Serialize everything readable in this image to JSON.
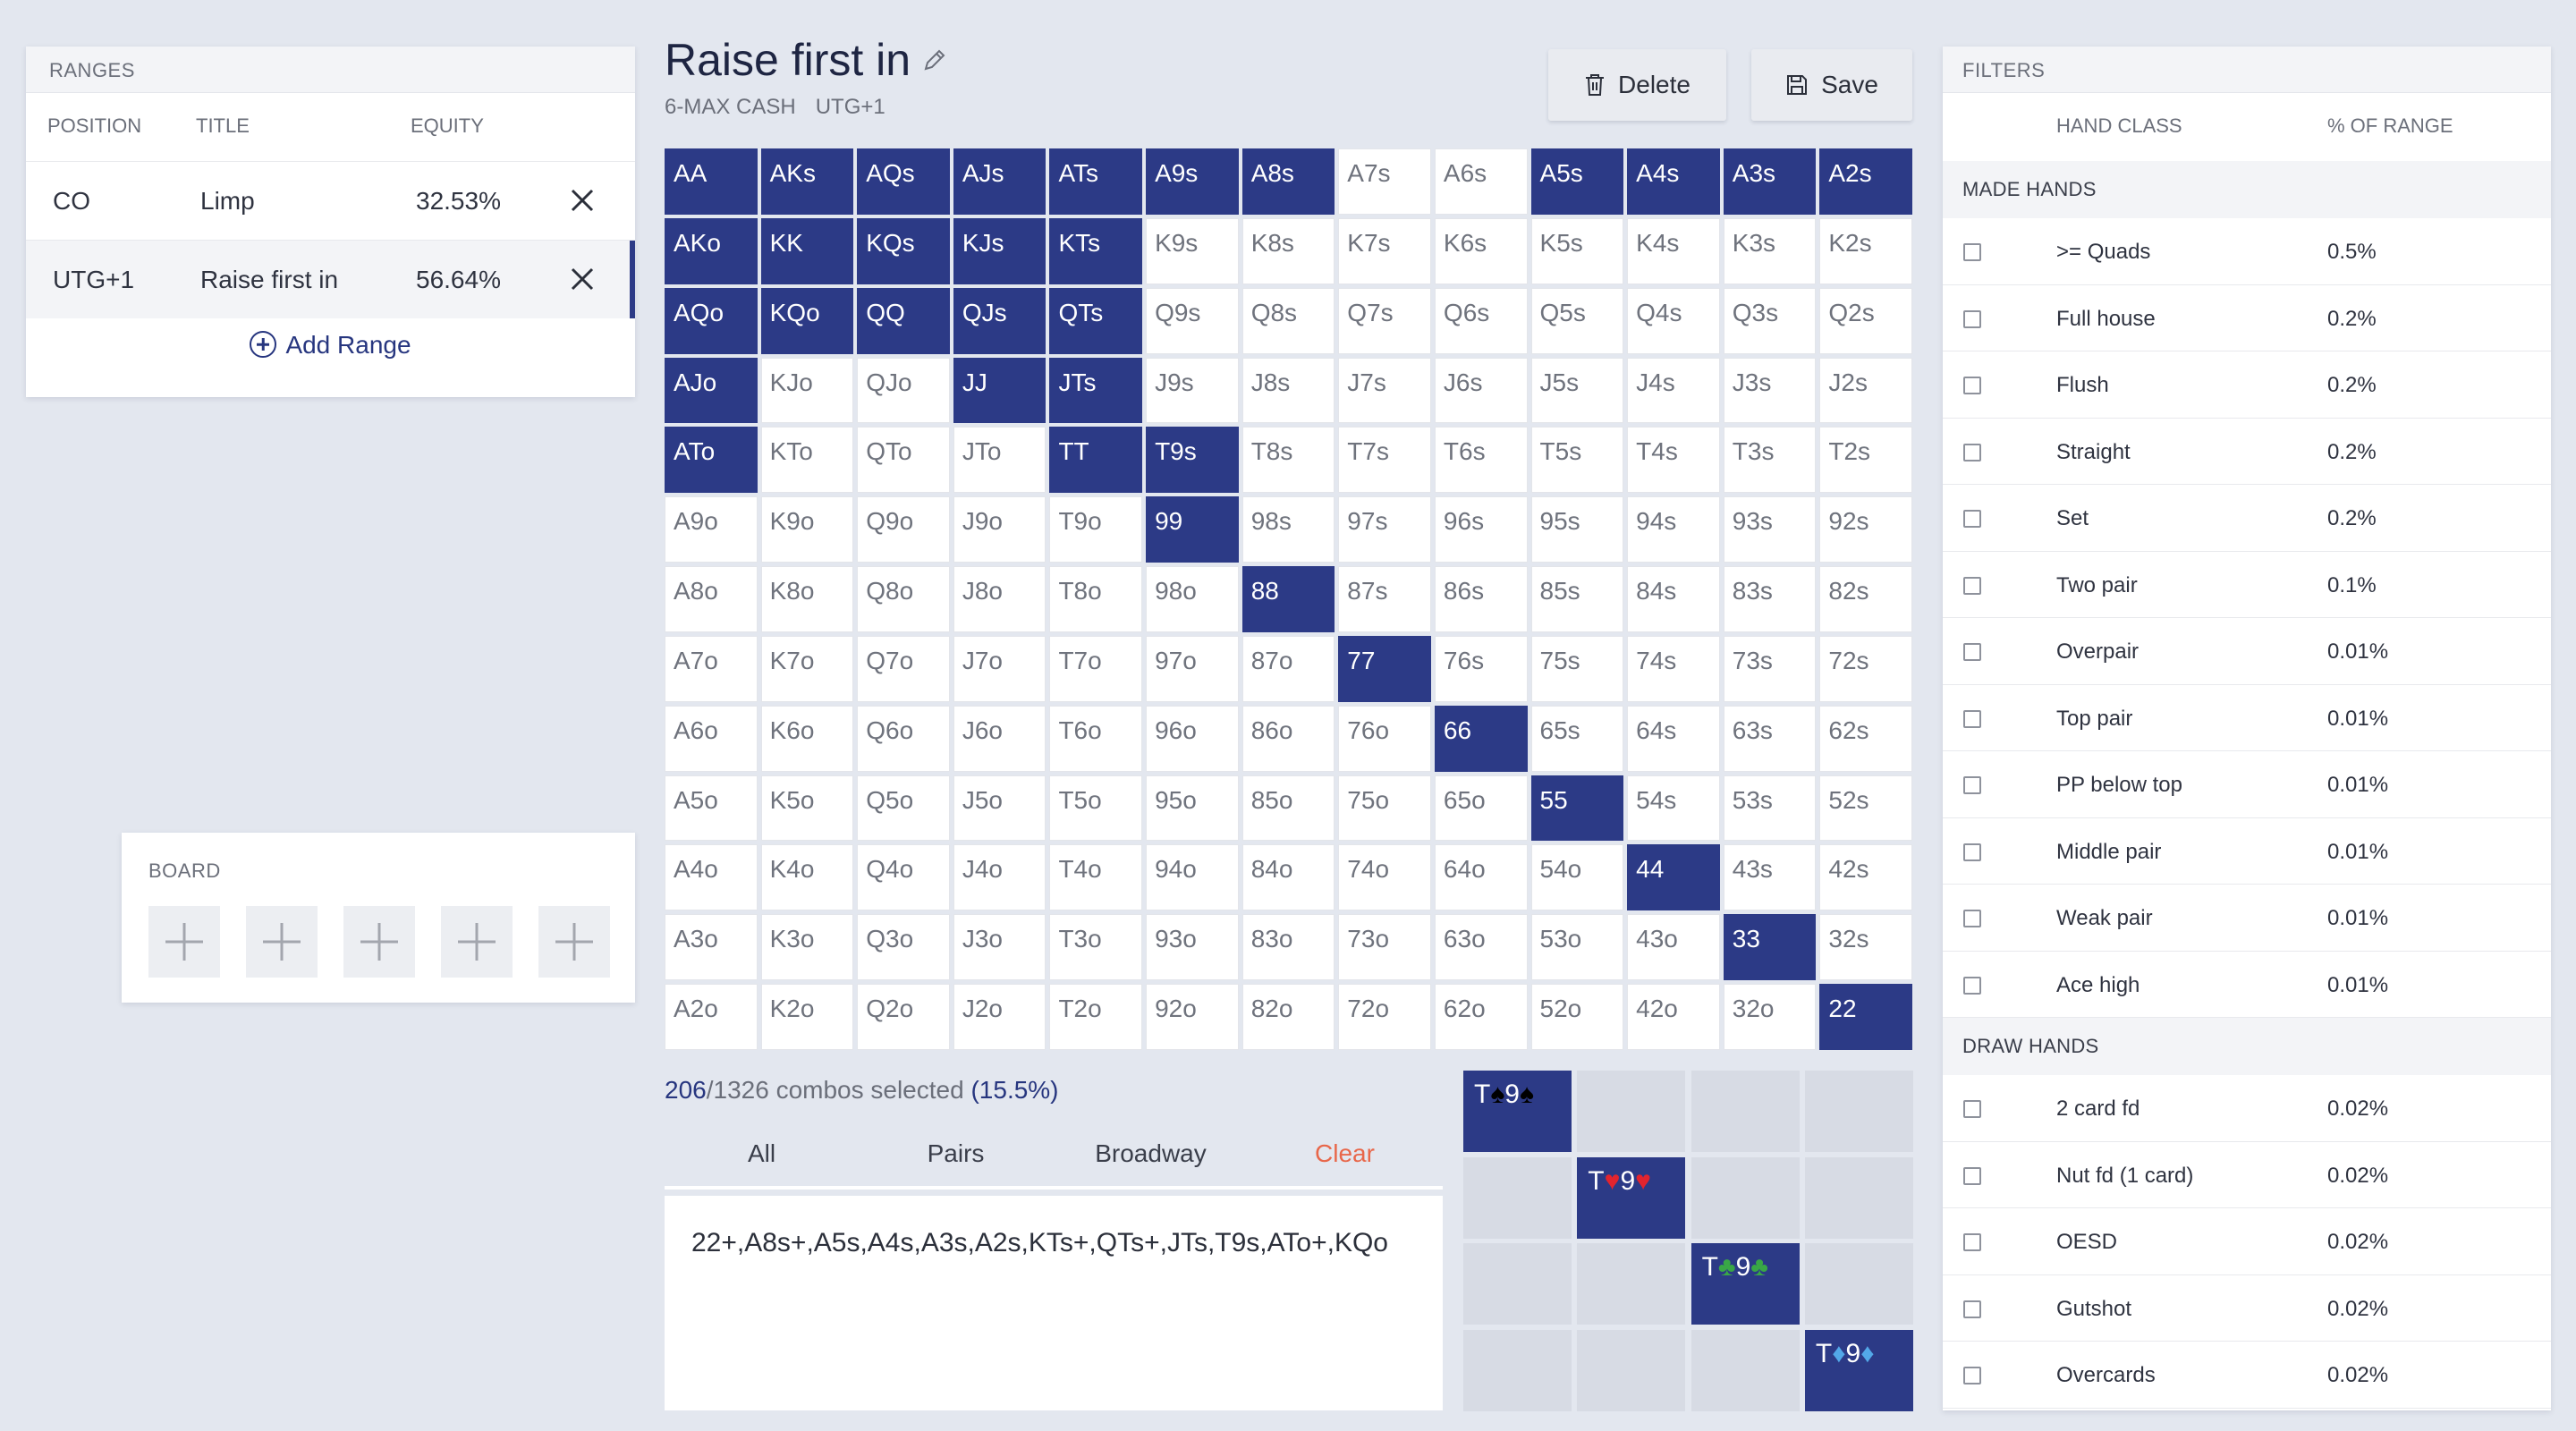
{
  "ranges": {
    "header": "RANGES",
    "columns": {
      "position": "POSITION",
      "title": "TITLE",
      "equity": "EQUITY"
    },
    "rows": [
      {
        "position": "CO",
        "title": "Limp",
        "equity": "32.53%"
      },
      {
        "position": "UTG+1",
        "title": "Raise first in",
        "equity": "56.64%"
      }
    ],
    "add_label": "Add Range"
  },
  "board": {
    "label": "BOARD",
    "slots": 5
  },
  "header": {
    "title": "Raise first in",
    "game": "6-MAX CASH",
    "position": "UTG+1",
    "delete_label": "Delete",
    "save_label": "Save"
  },
  "grid": {
    "rows": [
      [
        "AA",
        "AKs",
        "AQs",
        "AJs",
        "ATs",
        "A9s",
        "A8s",
        "A7s",
        "A6s",
        "A5s",
        "A4s",
        "A3s",
        "A2s"
      ],
      [
        "AKo",
        "KK",
        "KQs",
        "KJs",
        "KTs",
        "K9s",
        "K8s",
        "K7s",
        "K6s",
        "K5s",
        "K4s",
        "K3s",
        "K2s"
      ],
      [
        "AQo",
        "KQo",
        "QQ",
        "QJs",
        "QTs",
        "Q9s",
        "Q8s",
        "Q7s",
        "Q6s",
        "Q5s",
        "Q4s",
        "Q3s",
        "Q2s"
      ],
      [
        "AJo",
        "KJo",
        "QJo",
        "JJ",
        "JTs",
        "J9s",
        "J8s",
        "J7s",
        "J6s",
        "J5s",
        "J4s",
        "J3s",
        "J2s"
      ],
      [
        "ATo",
        "KTo",
        "QTo",
        "JTo",
        "TT",
        "T9s",
        "T8s",
        "T7s",
        "T6s",
        "T5s",
        "T4s",
        "T3s",
        "T2s"
      ],
      [
        "A9o",
        "K9o",
        "Q9o",
        "J9o",
        "T9o",
        "99",
        "98s",
        "97s",
        "96s",
        "95s",
        "94s",
        "93s",
        "92s"
      ],
      [
        "A8o",
        "K8o",
        "Q8o",
        "J8o",
        "T8o",
        "98o",
        "88",
        "87s",
        "86s",
        "85s",
        "84s",
        "83s",
        "82s"
      ],
      [
        "A7o",
        "K7o",
        "Q7o",
        "J7o",
        "T7o",
        "97o",
        "87o",
        "77",
        "76s",
        "75s",
        "74s",
        "73s",
        "72s"
      ],
      [
        "A6o",
        "K6o",
        "Q6o",
        "J6o",
        "T6o",
        "96o",
        "86o",
        "76o",
        "66",
        "65s",
        "64s",
        "63s",
        "62s"
      ],
      [
        "A5o",
        "K5o",
        "Q5o",
        "J5o",
        "T5o",
        "95o",
        "85o",
        "75o",
        "65o",
        "55",
        "54s",
        "53s",
        "52s"
      ],
      [
        "A4o",
        "K4o",
        "Q4o",
        "J4o",
        "T4o",
        "94o",
        "84o",
        "74o",
        "64o",
        "54o",
        "44",
        "43s",
        "42s"
      ],
      [
        "A3o",
        "K3o",
        "Q3o",
        "J3o",
        "T3o",
        "93o",
        "83o",
        "73o",
        "63o",
        "53o",
        "43o",
        "33",
        "32s"
      ],
      [
        "A2o",
        "K2o",
        "Q2o",
        "J2o",
        "T2o",
        "92o",
        "82o",
        "72o",
        "62o",
        "52o",
        "42o",
        "32o",
        "22"
      ]
    ],
    "selected": [
      "AA",
      "AKs",
      "AQs",
      "AJs",
      "ATs",
      "A9s",
      "A8s",
      "A5s",
      "A4s",
      "A3s",
      "A2s",
      "AKo",
      "KK",
      "KQs",
      "KJs",
      "KTs",
      "AQo",
      "KQo",
      "QQ",
      "QJs",
      "QTs",
      "AJo",
      "JJ",
      "JTs",
      "ATo",
      "TT",
      "T9s",
      "99",
      "88",
      "77",
      "66",
      "55",
      "44",
      "33",
      "22"
    ]
  },
  "combos": {
    "selected": "206",
    "total": "/1326 combos selected",
    "pct": "(15.5%)"
  },
  "tabs": {
    "all": "All",
    "pairs": "Pairs",
    "broadway": "Broadway",
    "clear": "Clear"
  },
  "range_text": "22+,A8s+,A5s,A4s,A3s,A2s,KTs+,QTs+,JTs,T9s,ATo+,KQo",
  "combo_matrix": {
    "hand": "T9",
    "cards": [
      {
        "rank1": "T",
        "rank2": "9",
        "suit": "♠",
        "color": "black"
      },
      {
        "rank1": "T",
        "rank2": "9",
        "suit": "♥",
        "color": "red"
      },
      {
        "rank1": "T",
        "rank2": "9",
        "suit": "♣",
        "color": "green"
      },
      {
        "rank1": "T",
        "rank2": "9",
        "suit": "♦",
        "color": "blue"
      }
    ]
  },
  "filters": {
    "header": "FILTERS",
    "columns": {
      "hand_class": "HAND CLASS",
      "pct": "% OF RANGE"
    },
    "made_hands_label": "MADE HANDS",
    "made_hands": [
      {
        "name": ">= Quads",
        "pct": "0.5%"
      },
      {
        "name": "Full house",
        "pct": "0.2%"
      },
      {
        "name": "Flush",
        "pct": "0.2%"
      },
      {
        "name": "Straight",
        "pct": "0.2%"
      },
      {
        "name": "Set",
        "pct": "0.2%"
      },
      {
        "name": "Two pair",
        "pct": "0.1%"
      },
      {
        "name": "Overpair",
        "pct": "0.01%"
      },
      {
        "name": "Top pair",
        "pct": "0.01%"
      },
      {
        "name": "PP below top",
        "pct": "0.01%"
      },
      {
        "name": "Middle pair",
        "pct": "0.01%"
      },
      {
        "name": "Weak pair",
        "pct": "0.01%"
      },
      {
        "name": "Ace high",
        "pct": "0.01%"
      }
    ],
    "draw_hands_label": "DRAW HANDS",
    "draw_hands": [
      {
        "name": "2 card fd",
        "pct": "0.02%"
      },
      {
        "name": "Nut fd (1 card)",
        "pct": "0.02%"
      },
      {
        "name": "OESD",
        "pct": "0.02%"
      },
      {
        "name": "Gutshot",
        "pct": "0.02%"
      },
      {
        "name": "Overcards",
        "pct": "0.02%"
      }
    ]
  },
  "colors": {
    "accent": "#2c3a86",
    "clear": "#e8674a",
    "background": "#e3e7ef"
  }
}
